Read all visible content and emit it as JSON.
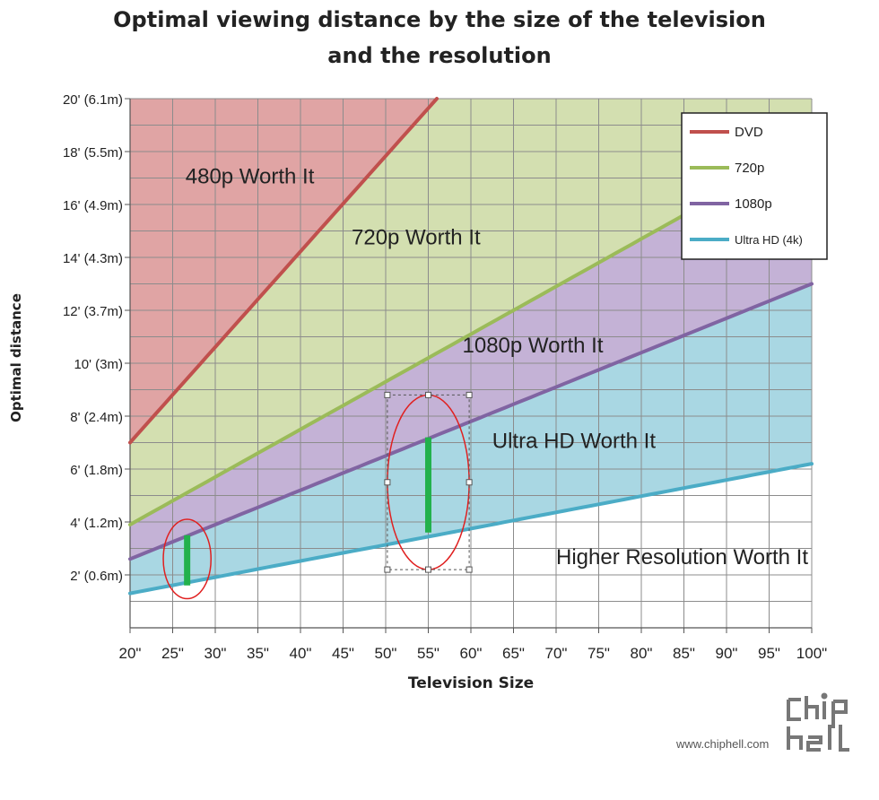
{
  "chart_data": {
    "type": "area",
    "title": "Optimal viewing distance by the size of the television",
    "title_line2": "and the resolution",
    "xlabel": "Television Size",
    "ylabel": "Optimal distance",
    "x": [
      20,
      100
    ],
    "xlim": [
      20,
      100
    ],
    "ylim": [
      0,
      20
    ],
    "x_ticks": [
      20,
      25,
      30,
      35,
      40,
      45,
      50,
      55,
      60,
      65,
      70,
      75,
      80,
      85,
      90,
      95,
      100
    ],
    "x_tick_labels": [
      "20\"",
      "25\"",
      "30\"",
      "35\"",
      "40\"",
      "45\"",
      "50\"",
      "55\"",
      "60\"",
      "65\"",
      "70\"",
      "75\"",
      "80\"",
      "85\"",
      "90\"",
      "95\"",
      "100\""
    ],
    "y_ticks": [
      2,
      4,
      6,
      8,
      10,
      12,
      14,
      16,
      18,
      20
    ],
    "y_tick_labels": [
      "2' (0.6m)",
      "4' (1.2m)",
      "6' (1.8m)",
      "8' (2.4m)",
      "10' (3m)",
      "12' (3.7m)",
      "14' (4.3m)",
      "16' (4.9m)",
      "18' (5.5m)",
      "20' (6.1m)"
    ],
    "grid": true,
    "legend_position": "top-right",
    "series": [
      {
        "name": "DVD",
        "color": "#c0504d",
        "points": [
          [
            20,
            7.0
          ],
          [
            56,
            20.0
          ]
        ]
      },
      {
        "name": "720p",
        "color": "#9bbb59",
        "points": [
          [
            20,
            3.9
          ],
          [
            100,
            18.3
          ]
        ]
      },
      {
        "name": "1080p",
        "color": "#8064a2",
        "points": [
          [
            20,
            2.6
          ],
          [
            100,
            13.0
          ]
        ]
      },
      {
        "name": "Ultra HD (4k)",
        "color": "#4bacc6",
        "points": [
          [
            20,
            1.3
          ],
          [
            100,
            6.2
          ]
        ]
      }
    ],
    "regions": [
      {
        "label": "480p Worth It",
        "color": "#e0a4a4"
      },
      {
        "label": "720p Worth It",
        "color": "#d3dfb0"
      },
      {
        "label": "1080p Worth It",
        "color": "#c4b2d6"
      },
      {
        "label": "Ultra HD Worth It",
        "color": "#a9d7e3"
      },
      {
        "label": "Higher Resolution Worth It",
        "color": "#ffffff"
      }
    ],
    "region_label_positions": [
      {
        "label": "480p Worth It",
        "x": 26.5,
        "y": 16.8
      },
      {
        "label": "720p Worth It",
        "x": 46,
        "y": 14.5
      },
      {
        "label": "1080p Worth It",
        "x": 59,
        "y": 10.4
      },
      {
        "label": "Ultra HD Worth It",
        "x": 62.5,
        "y": 6.8
      },
      {
        "label": "Higher Resolution Worth It",
        "x": 70,
        "y": 2.4
      }
    ],
    "annotations": [
      {
        "type": "highlight-bar",
        "color": "#22b14c",
        "x": 26.7,
        "y_from": 1.6,
        "y_to": 3.5
      },
      {
        "type": "highlight-bar",
        "color": "#22b14c",
        "x": 55,
        "y_from": 3.6,
        "y_to": 7.2
      },
      {
        "type": "ellipse",
        "color": "#e02020",
        "cx": 26.7,
        "cy": 2.6,
        "rx": 2.8,
        "ry": 1.5
      },
      {
        "type": "ellipse",
        "color": "#e02020",
        "cx": 55,
        "cy": 5.5,
        "rx": 4.8,
        "ry": 3.3
      },
      {
        "type": "selection-box",
        "color": "#555555",
        "x_from": 50.2,
        "x_to": 59.8,
        "y_from": 2.2,
        "y_to": 8.8
      }
    ]
  },
  "watermark": {
    "text": "www.chiphell.com",
    "logo": "chip hell"
  }
}
